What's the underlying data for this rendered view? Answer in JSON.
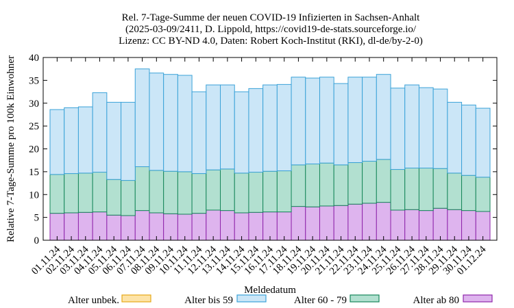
{
  "chart_data": {
    "type": "bar",
    "stacked": true,
    "title_lines": [
      "Rel. 7-Tage-Summe der neuen COVID-19 Infizierten in Sachsen-Anhalt",
      "(2025-03-09/2411, D. Lippold, https://covid19-de-stats.sourceforge.io/",
      "Lizenz: CC BY-ND 4.0, Daten: Robert Koch-Institut (RKI), dl-de/by-2-0)"
    ],
    "xlabel": "Meldedatum",
    "ylabel": "Relative 7-Tage-Summe pro 100k Einwohner",
    "ylim": [
      0,
      40
    ],
    "yticks": [
      0,
      5,
      10,
      15,
      20,
      25,
      30,
      35,
      40
    ],
    "grid": false,
    "legend_placement": "bottom",
    "categories": [
      "01.11.24",
      "02.11.24",
      "03.11.24",
      "04.11.24",
      "05.11.24",
      "06.11.24",
      "07.11.24",
      "08.11.24",
      "09.11.24",
      "10.11.24",
      "11.11.24",
      "12.11.24",
      "13.11.24",
      "14.11.24",
      "15.11.24",
      "16.11.24",
      "17.11.24",
      "18.11.24",
      "19.11.24",
      "20.11.24",
      "21.11.24",
      "22.11.24",
      "23.11.24",
      "24.11.24",
      "25.11.24",
      "26.11.24",
      "27.11.24",
      "28.11.24",
      "29.11.24",
      "30.11.24",
      "01.12.24"
    ],
    "series": [
      {
        "name": "Alter unbek.",
        "fill": "#fde3a7",
        "stroke": "#e6a817",
        "values": [
          0,
          0,
          0,
          0,
          0,
          0,
          0,
          0,
          0,
          0,
          0,
          0,
          0,
          0,
          0,
          0,
          0,
          0,
          0,
          0,
          0,
          0,
          0,
          0,
          0,
          0,
          0,
          0,
          0,
          0,
          0
        ]
      },
      {
        "name": "Alter ab 80",
        "fill": "#deb4ee",
        "stroke": "#8e24aa",
        "values": [
          5.9,
          6.0,
          6.1,
          6.2,
          5.5,
          5.4,
          6.5,
          6.0,
          5.8,
          5.7,
          5.9,
          6.6,
          6.5,
          6.0,
          6.1,
          6.2,
          6.2,
          7.4,
          7.3,
          7.5,
          7.6,
          7.9,
          8.1,
          8.3,
          6.6,
          6.7,
          6.5,
          7.0,
          6.7,
          6.5,
          6.3
        ]
      },
      {
        "name": "Alter 60 - 79",
        "fill": "#b2e0d0",
        "stroke": "#16865a",
        "values": [
          8.5,
          8.6,
          8.6,
          8.7,
          7.8,
          7.7,
          9.6,
          9.3,
          9.3,
          9.3,
          8.7,
          8.8,
          9.1,
          8.7,
          8.8,
          8.9,
          9.0,
          9.1,
          9.4,
          9.4,
          8.9,
          9.1,
          9.2,
          9.4,
          8.9,
          9.1,
          9.3,
          8.7,
          8.0,
          7.7,
          7.5
        ]
      },
      {
        "name": "Alter bis 59",
        "fill": "#cbe6f7",
        "stroke": "#3aa2d8",
        "values": [
          14.2,
          14.4,
          14.5,
          17.4,
          16.9,
          17.1,
          21.4,
          21.3,
          21.2,
          21.1,
          17.9,
          18.6,
          18.4,
          17.8,
          18.3,
          18.9,
          18.9,
          19.2,
          18.8,
          18.8,
          17.8,
          18.7,
          18.4,
          18.6,
          17.8,
          18.2,
          17.6,
          17.4,
          15.5,
          15.4,
          15.1
        ]
      }
    ],
    "legend_order": [
      "Alter unbek.",
      "Alter bis 59",
      "Alter 60 - 79",
      "Alter ab 80"
    ]
  }
}
